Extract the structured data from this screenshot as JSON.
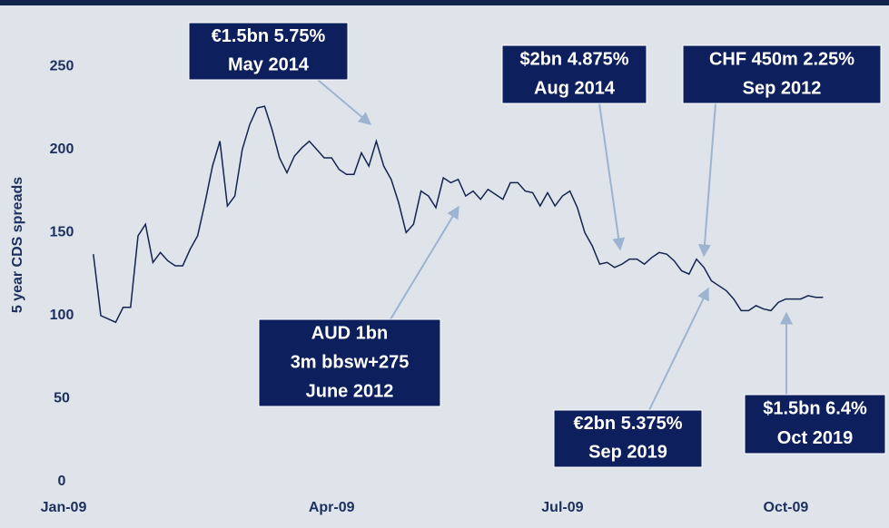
{
  "chart_data": {
    "type": "line",
    "ylabel": "5 year CDS spreads",
    "categories": [
      "Jan-09",
      null,
      null,
      null,
      null,
      null,
      null,
      null,
      null,
      null,
      null,
      null,
      null,
      null,
      null,
      null,
      null,
      null,
      null,
      null,
      null,
      null,
      null,
      null,
      null,
      null,
      null,
      null,
      null,
      null,
      null,
      null,
      null,
      null,
      null,
      null,
      "Apr-09",
      null,
      null,
      null,
      null,
      null,
      null,
      null,
      null,
      null,
      null,
      null,
      null,
      null,
      null,
      null,
      null,
      null,
      null,
      null,
      null,
      null,
      null,
      null,
      null,
      null,
      null,
      null,
      null,
      null,
      null,
      "Jul-09",
      null,
      null,
      null,
      null,
      null,
      null,
      null,
      null,
      null,
      null,
      null,
      null,
      null,
      null,
      null,
      null,
      null,
      null,
      null,
      null,
      null,
      null,
      null,
      null,
      null,
      null,
      null,
      null,
      null,
      "Oct-09",
      null,
      null,
      null,
      null,
      null
    ],
    "series": [
      {
        "color": "#13244f",
        "values": [
          null,
          null,
          null,
          null,
          137,
          100,
          98,
          96,
          105,
          105,
          148,
          155,
          132,
          138,
          133,
          130,
          130,
          140,
          148,
          168,
          190,
          205,
          166,
          172,
          200,
          215,
          225,
          226,
          212,
          195,
          186,
          196,
          201,
          205,
          200,
          195,
          195,
          188,
          185,
          185,
          198,
          190,
          205,
          190,
          182,
          168,
          150,
          155,
          175,
          172,
          165,
          183,
          180,
          182,
          172,
          175,
          170,
          176,
          173,
          170,
          180,
          180,
          175,
          174,
          166,
          174,
          166,
          172,
          175,
          165,
          150,
          142,
          131,
          132,
          129,
          131,
          134,
          134,
          131,
          135,
          138,
          137,
          133,
          127,
          125,
          134,
          129,
          121,
          118,
          115,
          110,
          103,
          103,
          106,
          104,
          103,
          108,
          110,
          110,
          110,
          112,
          111,
          111
        ]
      }
    ],
    "ylim": [
      0,
      290
    ],
    "yticks": [
      0,
      50,
      100,
      150,
      200,
      250
    ],
    "grid": false,
    "annotations": [
      {
        "lines": [
          "€1.5bn 5.75%",
          "May 2014"
        ]
      },
      {
        "lines": [
          "AUD 1bn",
          "3m bbsw+275",
          "June 2012"
        ]
      },
      {
        "lines": [
          "$2bn 4.875%",
          "Aug 2014"
        ]
      },
      {
        "lines": [
          "CHF 450m 2.25%",
          "Sep 2012"
        ]
      },
      {
        "lines": [
          "€2bn 5.375%",
          "Sep 2019"
        ]
      },
      {
        "lines": [
          "$1.5bn 6.4%",
          "Oct 2019"
        ]
      }
    ]
  }
}
